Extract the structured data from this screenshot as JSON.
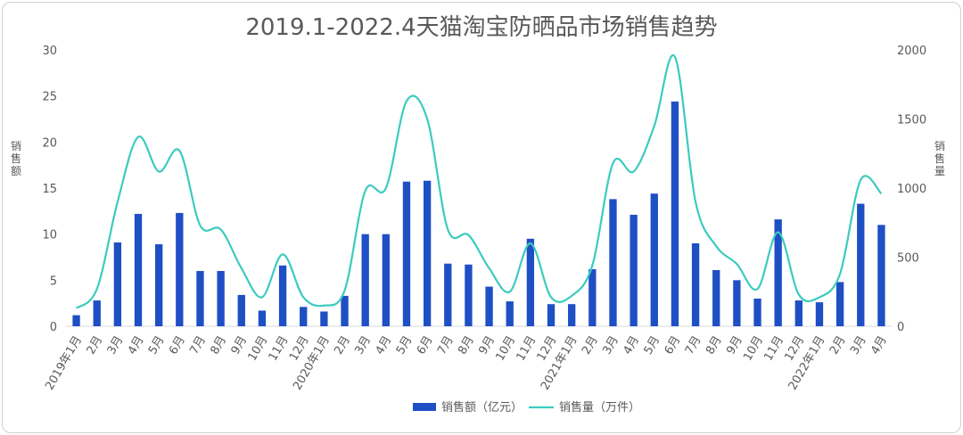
{
  "chart_data": {
    "type": "bar",
    "title": "2019.1-2022.4天猫淘宝防晒品市场销售趋势",
    "ylabel": "销售额",
    "y2label": "销售量",
    "ylim": [
      0,
      30
    ],
    "y2lim": [
      0,
      2000
    ],
    "yticks": [
      "0",
      "5",
      "10",
      "15",
      "20",
      "25",
      "30"
    ],
    "y2ticks": [
      "0",
      "500",
      "1000",
      "1500",
      "2000"
    ],
    "categories": [
      "2019年1月",
      "2月",
      "3月",
      "4月",
      "5月",
      "6月",
      "7月",
      "8月",
      "9月",
      "10月",
      "11月",
      "12月",
      "2020年1月",
      "2月",
      "3月",
      "4月",
      "5月",
      "6月",
      "7月",
      "8月",
      "9月",
      "10月",
      "11月",
      "12月",
      "2021年1月",
      "2月",
      "3月",
      "4月",
      "5月",
      "6月",
      "7月",
      "8月",
      "9月",
      "10月",
      "11月",
      "12月",
      "2022年1月",
      "2月",
      "3月",
      "4月"
    ],
    "series": [
      {
        "name": "销售额（亿元）",
        "type": "bar",
        "axis": "left",
        "color": "#1f4fc4",
        "values": [
          1.2,
          2.8,
          9.1,
          12.2,
          8.9,
          12.3,
          6.0,
          6.0,
          3.4,
          1.7,
          6.6,
          2.1,
          1.6,
          3.3,
          10.0,
          10.0,
          15.7,
          15.8,
          6.8,
          6.7,
          4.3,
          2.7,
          9.5,
          2.4,
          2.4,
          6.2,
          13.8,
          12.1,
          14.4,
          24.4,
          9.0,
          6.1,
          5.0,
          3.0,
          11.6,
          2.8,
          2.6,
          4.8,
          13.3,
          11.0
        ]
      },
      {
        "name": "销售量（万件）",
        "type": "line",
        "axis": "right",
        "color": "#3ccbbf",
        "values": [
          130,
          270,
          900,
          1370,
          1120,
          1270,
          730,
          700,
          420,
          210,
          520,
          210,
          150,
          260,
          980,
          1000,
          1630,
          1500,
          700,
          660,
          420,
          250,
          600,
          210,
          220,
          440,
          1180,
          1120,
          1450,
          1950,
          900,
          580,
          450,
          270,
          680,
          230,
          210,
          380,
          1060,
          960
        ]
      }
    ]
  }
}
